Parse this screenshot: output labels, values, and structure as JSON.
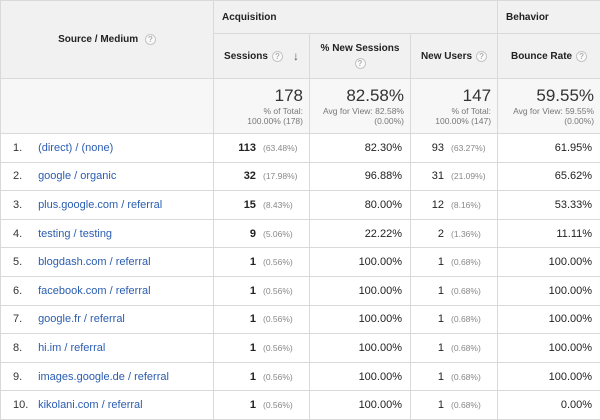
{
  "header": {
    "source_medium": "Source / Medium",
    "group_acquisition": "Acquisition",
    "group_behavior": "Behavior",
    "sessions": "Sessions",
    "pct_new_sessions": "% New Sessions",
    "new_users": "New Users",
    "bounce_rate": "Bounce Rate",
    "help_glyph": "?",
    "sort_glyph": "↓"
  },
  "totals": {
    "sessions": {
      "value": "178",
      "line1": "% of Total:",
      "line2": "100.00% (178)"
    },
    "pct_new_sessions": {
      "value": "82.58%",
      "line1": "Avg for View: 82.58%",
      "line2": "(0.00%)"
    },
    "new_users": {
      "value": "147",
      "line1": "% of Total:",
      "line2": "100.00% (147)"
    },
    "bounce_rate": {
      "value": "59.55%",
      "line1": "Avg for View: 59.55%",
      "line2": "(0.00%)"
    }
  },
  "rows": [
    {
      "num": "1.",
      "source": "(direct) / (none)",
      "sessions": "113",
      "sessions_pct": "(63.48%)",
      "pct_new": "82.30%",
      "new_users": "93",
      "new_users_pct": "(63.27%)",
      "bounce": "61.95%"
    },
    {
      "num": "2.",
      "source": "google / organic",
      "sessions": "32",
      "sessions_pct": "(17.98%)",
      "pct_new": "96.88%",
      "new_users": "31",
      "new_users_pct": "(21.09%)",
      "bounce": "65.62%"
    },
    {
      "num": "3.",
      "source": "plus.google.com / referral",
      "sessions": "15",
      "sessions_pct": "(8.43%)",
      "pct_new": "80.00%",
      "new_users": "12",
      "new_users_pct": "(8.16%)",
      "bounce": "53.33%"
    },
    {
      "num": "4.",
      "source": "testing / testing",
      "sessions": "9",
      "sessions_pct": "(5.06%)",
      "pct_new": "22.22%",
      "new_users": "2",
      "new_users_pct": "(1.36%)",
      "bounce": "11.11%"
    },
    {
      "num": "5.",
      "source": "blogdash.com / referral",
      "sessions": "1",
      "sessions_pct": "(0.56%)",
      "pct_new": "100.00%",
      "new_users": "1",
      "new_users_pct": "(0.68%)",
      "bounce": "100.00%"
    },
    {
      "num": "6.",
      "source": "facebook.com / referral",
      "sessions": "1",
      "sessions_pct": "(0.56%)",
      "pct_new": "100.00%",
      "new_users": "1",
      "new_users_pct": "(0.68%)",
      "bounce": "100.00%"
    },
    {
      "num": "7.",
      "source": "google.fr / referral",
      "sessions": "1",
      "sessions_pct": "(0.56%)",
      "pct_new": "100.00%",
      "new_users": "1",
      "new_users_pct": "(0.68%)",
      "bounce": "100.00%"
    },
    {
      "num": "8.",
      "source": "hi.im / referral",
      "sessions": "1",
      "sessions_pct": "(0.56%)",
      "pct_new": "100.00%",
      "new_users": "1",
      "new_users_pct": "(0.68%)",
      "bounce": "100.00%"
    },
    {
      "num": "9.",
      "source": "images.google.de / referral",
      "sessions": "1",
      "sessions_pct": "(0.56%)",
      "pct_new": "100.00%",
      "new_users": "1",
      "new_users_pct": "(0.68%)",
      "bounce": "100.00%"
    },
    {
      "num": "10.",
      "source": "kikolani.com / referral",
      "sessions": "1",
      "sessions_pct": "(0.56%)",
      "pct_new": "100.00%",
      "new_users": "1",
      "new_users_pct": "(0.68%)",
      "bounce": "0.00%"
    }
  ]
}
